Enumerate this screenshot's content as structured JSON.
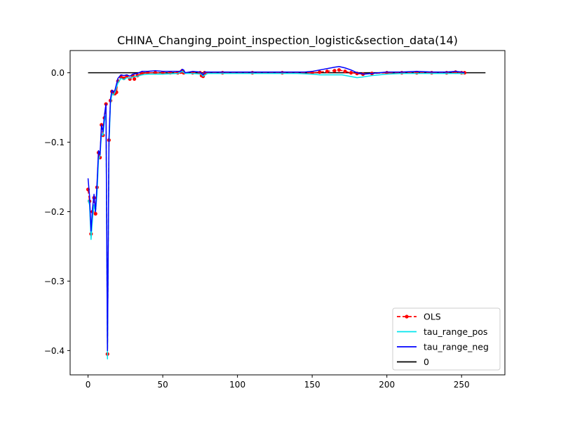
{
  "chart_data": {
    "type": "line",
    "title": "CHINA_Changing_point_inspection_logistic&section_data(14)",
    "xlabel": "",
    "ylabel": "",
    "xlim": [
      -12,
      279
    ],
    "ylim": [
      -0.435,
      0.032
    ],
    "x_ticks": [
      0,
      50,
      100,
      150,
      200,
      250
    ],
    "x_tick_labels": [
      "0",
      "50",
      "100",
      "150",
      "200",
      "250"
    ],
    "y_ticks": [
      0.0,
      -0.1,
      -0.2,
      -0.3,
      -0.4
    ],
    "y_tick_labels": [
      "0.0",
      "−0.1",
      "−0.2",
      "−0.3",
      "−0.4"
    ],
    "grid": false,
    "legend_position": "lower right",
    "legend": [
      {
        "label": "OLS",
        "color": "#ff0000",
        "style": "dashed-dot"
      },
      {
        "label": "tau_range_pos",
        "color": "#00e5ee",
        "style": "solid"
      },
      {
        "label": "tau_range_neg",
        "color": "#0000ff",
        "style": "solid"
      },
      {
        "label": "0",
        "color": "#000000",
        "style": "solid"
      }
    ],
    "series": [
      {
        "name": "OLS",
        "color": "#ff0000",
        "points": [
          [
            0,
            -0.168
          ],
          [
            1,
            -0.185
          ],
          [
            2,
            -0.232
          ],
          [
            3,
            -0.2
          ],
          [
            4,
            -0.18
          ],
          [
            5,
            -0.203
          ],
          [
            6,
            -0.165
          ],
          [
            7,
            -0.115
          ],
          [
            8,
            -0.122
          ],
          [
            9,
            -0.075
          ],
          [
            10,
            -0.09
          ],
          [
            11,
            -0.065
          ],
          [
            12,
            -0.045
          ],
          [
            13,
            -0.405
          ],
          [
            14,
            -0.097
          ],
          [
            15,
            -0.04
          ],
          [
            16,
            -0.027
          ],
          [
            17,
            -0.03
          ],
          [
            18,
            -0.03
          ],
          [
            19,
            -0.028
          ],
          [
            20,
            -0.012
          ],
          [
            22,
            -0.006
          ],
          [
            24,
            -0.008
          ],
          [
            26,
            -0.005
          ],
          [
            28,
            -0.009
          ],
          [
            30,
            -0.004
          ],
          [
            31,
            -0.009
          ],
          [
            33,
            -0.004
          ],
          [
            36,
            -0.001
          ],
          [
            40,
            0.0
          ],
          [
            45,
            0.0
          ],
          [
            50,
            0.0
          ],
          [
            55,
            0.0
          ],
          [
            60,
            0.0
          ],
          [
            62,
            0.001
          ],
          [
            63,
            0.003
          ],
          [
            64,
            0.0
          ],
          [
            70,
            0.0
          ],
          [
            75,
            0.0
          ],
          [
            76,
            -0.004
          ],
          [
            77,
            -0.005
          ],
          [
            78,
            0.0
          ],
          [
            90,
            0.0
          ],
          [
            110,
            0.0
          ],
          [
            130,
            0.0
          ],
          [
            150,
            0.0
          ],
          [
            155,
            0.001
          ],
          [
            160,
            0.002
          ],
          [
            165,
            0.003
          ],
          [
            168,
            0.004
          ],
          [
            172,
            0.002
          ],
          [
            176,
            0.0
          ],
          [
            180,
            -0.001
          ],
          [
            184,
            -0.002
          ],
          [
            190,
            -0.001
          ],
          [
            200,
            0.0
          ],
          [
            210,
            0.0
          ],
          [
            220,
            0.0
          ],
          [
            230,
            0.0
          ],
          [
            240,
            0.0
          ],
          [
            246,
            0.001
          ],
          [
            250,
            0.0
          ],
          [
            252,
            0.0
          ]
        ]
      },
      {
        "name": "tau_range_pos",
        "color": "#00e5ee",
        "points": [
          [
            0,
            -0.183
          ],
          [
            1,
            -0.19
          ],
          [
            2,
            -0.24
          ],
          [
            3,
            -0.21
          ],
          [
            4,
            -0.19
          ],
          [
            5,
            -0.2
          ],
          [
            6,
            -0.175
          ],
          [
            7,
            -0.125
          ],
          [
            8,
            -0.12
          ],
          [
            9,
            -0.088
          ],
          [
            10,
            -0.09
          ],
          [
            11,
            -0.07
          ],
          [
            12,
            -0.06
          ],
          [
            13,
            -0.412
          ],
          [
            14,
            -0.105
          ],
          [
            15,
            -0.045
          ],
          [
            16,
            -0.03
          ],
          [
            17,
            -0.032
          ],
          [
            18,
            -0.028
          ],
          [
            20,
            -0.015
          ],
          [
            22,
            -0.008
          ],
          [
            24,
            -0.01
          ],
          [
            26,
            -0.007
          ],
          [
            28,
            -0.008
          ],
          [
            30,
            -0.006
          ],
          [
            33,
            -0.005
          ],
          [
            36,
            -0.003
          ],
          [
            40,
            -0.002
          ],
          [
            50,
            -0.002
          ],
          [
            60,
            -0.001
          ],
          [
            63,
            0.002
          ],
          [
            65,
            -0.001
          ],
          [
            70,
            -0.001
          ],
          [
            76,
            -0.002
          ],
          [
            77,
            -0.005
          ],
          [
            80,
            -0.001
          ],
          [
            100,
            -0.001
          ],
          [
            120,
            -0.001
          ],
          [
            140,
            -0.001
          ],
          [
            150,
            -0.002
          ],
          [
            155,
            -0.003
          ],
          [
            160,
            -0.003
          ],
          [
            165,
            -0.003
          ],
          [
            170,
            -0.003
          ],
          [
            175,
            -0.005
          ],
          [
            180,
            -0.007
          ],
          [
            184,
            -0.006
          ],
          [
            190,
            -0.004
          ],
          [
            195,
            -0.003
          ],
          [
            200,
            -0.002
          ],
          [
            210,
            -0.001
          ],
          [
            220,
            -0.001
          ],
          [
            230,
            -0.001
          ],
          [
            240,
            -0.001
          ],
          [
            250,
            -0.001
          ],
          [
            252,
            -0.001
          ]
        ]
      },
      {
        "name": "tau_range_neg",
        "color": "#0000ff",
        "points": [
          [
            0,
            -0.152
          ],
          [
            1,
            -0.178
          ],
          [
            2,
            -0.228
          ],
          [
            3,
            -0.195
          ],
          [
            4,
            -0.175
          ],
          [
            5,
            -0.2
          ],
          [
            6,
            -0.16
          ],
          [
            7,
            -0.112
          ],
          [
            8,
            -0.118
          ],
          [
            9,
            -0.075
          ],
          [
            10,
            -0.085
          ],
          [
            11,
            -0.06
          ],
          [
            12,
            -0.045
          ],
          [
            13,
            -0.4
          ],
          [
            14,
            -0.095
          ],
          [
            15,
            -0.038
          ],
          [
            16,
            -0.025
          ],
          [
            17,
            -0.028
          ],
          [
            18,
            -0.025
          ],
          [
            20,
            -0.008
          ],
          [
            22,
            -0.003
          ],
          [
            24,
            -0.004
          ],
          [
            26,
            -0.003
          ],
          [
            28,
            -0.005
          ],
          [
            30,
            -0.002
          ],
          [
            33,
            -0.001
          ],
          [
            36,
            0.002
          ],
          [
            40,
            0.002
          ],
          [
            45,
            0.003
          ],
          [
            50,
            0.002
          ],
          [
            55,
            0.002
          ],
          [
            60,
            0.002
          ],
          [
            62,
            0.002
          ],
          [
            63,
            0.005
          ],
          [
            64,
            0.004
          ],
          [
            65,
            0.0
          ],
          [
            70,
            0.002
          ],
          [
            75,
            0.001
          ],
          [
            77,
            -0.003
          ],
          [
            78,
            0.001
          ],
          [
            90,
            0.001
          ],
          [
            110,
            0.001
          ],
          [
            130,
            0.001
          ],
          [
            145,
            0.001
          ],
          [
            150,
            0.002
          ],
          [
            155,
            0.004
          ],
          [
            160,
            0.006
          ],
          [
            165,
            0.008
          ],
          [
            168,
            0.009
          ],
          [
            172,
            0.007
          ],
          [
            176,
            0.004
          ],
          [
            180,
            0.0
          ],
          [
            185,
            -0.002
          ],
          [
            190,
            -0.001
          ],
          [
            200,
            0.001
          ],
          [
            210,
            0.001
          ],
          [
            220,
            0.002
          ],
          [
            230,
            0.001
          ],
          [
            240,
            0.001
          ],
          [
            246,
            0.002
          ],
          [
            250,
            0.001
          ],
          [
            252,
            0.0
          ]
        ]
      },
      {
        "name": "0",
        "color": "#000000",
        "points": [
          [
            0,
            0.0
          ],
          [
            266,
            0.0
          ]
        ]
      }
    ]
  }
}
